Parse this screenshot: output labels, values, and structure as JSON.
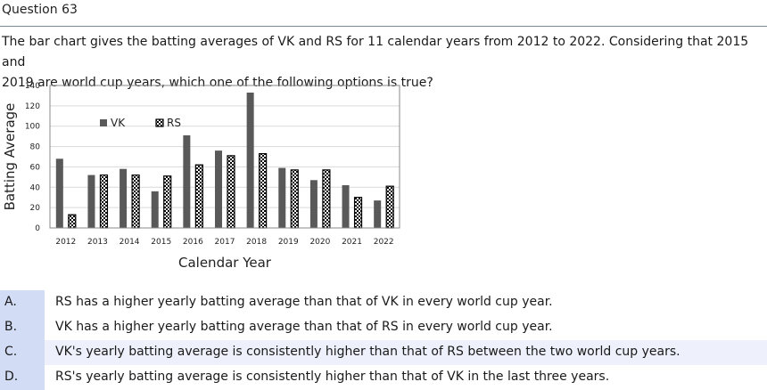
{
  "question": {
    "title": "Question 63",
    "line1": "The bar chart gives the batting averages of VK and RS for 11 calendar years from 2012 to 2022. Considering that 2015 and",
    "line2": "2019 are world cup years, which one of the following options is true?"
  },
  "chart_data": {
    "type": "bar",
    "xlabel": "Calendar Year",
    "ylabel": "Batting Average",
    "ylim": [
      0,
      140
    ],
    "yticks": [
      0,
      20,
      40,
      60,
      80,
      100,
      120,
      140
    ],
    "categories": [
      "2012",
      "2013",
      "2014",
      "2015",
      "2016",
      "2017",
      "2018",
      "2019",
      "2020",
      "2021",
      "2022"
    ],
    "series": [
      {
        "name": "VK",
        "color": "#595959",
        "pattern": "solid",
        "values": [
          68,
          52,
          58,
          36,
          91,
          76,
          133,
          59,
          47,
          42,
          27
        ]
      },
      {
        "name": "RS",
        "color": "#000000",
        "pattern": "checkerboard",
        "values": [
          13,
          52,
          52,
          51,
          62,
          71,
          73,
          57,
          57,
          30,
          41
        ]
      }
    ],
    "legend": "top-left inside plot",
    "grid": true
  },
  "options": [
    {
      "label": "A.",
      "text": "RS has a higher yearly batting average than that of VK in every world cup year."
    },
    {
      "label": "B.",
      "text": "VK has a higher yearly batting average than that of RS in every world cup year."
    },
    {
      "label": "C.",
      "text": "VK's yearly batting average is consistently higher than that of RS between the two world cup years."
    },
    {
      "label": "D.",
      "text": "RS's yearly batting average is consistently higher than that of VK in the last three years."
    }
  ]
}
